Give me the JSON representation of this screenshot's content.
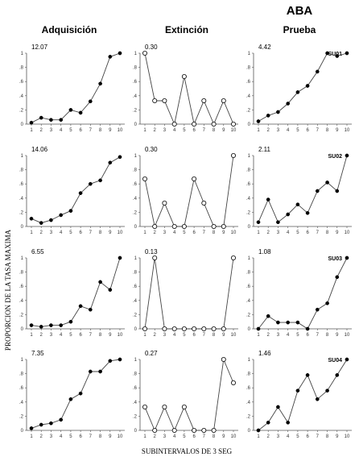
{
  "figure": {
    "group": "ABA",
    "columns": [
      "Adquisición",
      "Extinción",
      "Prueba"
    ],
    "ylabel": "PROPORCION DE LA TASA MAXIMA",
    "xlabel": "SUBINTERVALOS DE 3 SEG"
  },
  "chart_data": [
    {
      "type": "line",
      "row": 0,
      "col": 0,
      "value_label": "12.07",
      "subject": "",
      "marker": "filled",
      "x": [
        1,
        2,
        3,
        4,
        5,
        6,
        7,
        8,
        9,
        10
      ],
      "values": [
        0.02,
        0.09,
        0.06,
        0.06,
        0.2,
        0.16,
        0.32,
        0.57,
        0.95,
        1.0
      ],
      "ylim": [
        0,
        1
      ],
      "yticks": [
        0,
        0.2,
        0.4,
        0.6,
        0.8,
        1
      ],
      "yticklabels": [
        "0",
        ".2",
        ".4",
        ".6",
        ".8",
        "1"
      ]
    },
    {
      "type": "line",
      "row": 0,
      "col": 1,
      "value_label": "0.30",
      "subject": "",
      "marker": "open",
      "x": [
        1,
        2,
        3,
        4,
        5,
        6,
        7,
        8,
        9,
        10
      ],
      "values": [
        1.0,
        0.33,
        0.33,
        0.0,
        0.67,
        0.0,
        0.33,
        0.0,
        0.33,
        0.0
      ],
      "ylim": [
        0,
        1
      ],
      "yticks": [
        0,
        0.2,
        0.4,
        0.6,
        0.8,
        1
      ],
      "yticklabels": [
        "0",
        ".2",
        ".4",
        ".6",
        ".8",
        "1"
      ]
    },
    {
      "type": "line",
      "row": 0,
      "col": 2,
      "value_label": "4.42",
      "subject": "SU01",
      "marker": "filled",
      "x": [
        1,
        2,
        3,
        4,
        5,
        6,
        7,
        8,
        9,
        10
      ],
      "values": [
        0.04,
        0.12,
        0.17,
        0.29,
        0.45,
        0.54,
        0.74,
        1.0,
        0.96,
        1.0
      ],
      "ylim": [
        0,
        1
      ],
      "yticks": [
        0,
        0.2,
        0.4,
        0.6,
        0.8,
        1
      ],
      "yticklabels": [
        "0",
        ".2",
        ".4",
        ".6",
        ".8",
        "1"
      ]
    },
    {
      "type": "line",
      "row": 1,
      "col": 0,
      "value_label": "14.06",
      "subject": "",
      "marker": "filled",
      "x": [
        1,
        2,
        3,
        4,
        5,
        6,
        7,
        8,
        9,
        10
      ],
      "values": [
        0.11,
        0.05,
        0.09,
        0.16,
        0.22,
        0.47,
        0.6,
        0.65,
        0.9,
        0.98
      ],
      "ylim": [
        0,
        1
      ],
      "yticks": [
        0,
        0.2,
        0.4,
        0.6,
        0.8,
        1
      ],
      "yticklabels": [
        "0",
        ".2",
        ".4",
        ".6",
        ".8",
        "1"
      ]
    },
    {
      "type": "line",
      "row": 1,
      "col": 1,
      "value_label": "0.30",
      "subject": "",
      "marker": "open",
      "x": [
        1,
        2,
        3,
        4,
        5,
        6,
        7,
        8,
        9,
        10
      ],
      "values": [
        0.67,
        0.0,
        0.33,
        0.0,
        0.0,
        0.67,
        0.33,
        0.0,
        0.0,
        1.0
      ],
      "ylim": [
        0,
        1
      ],
      "yticks": [
        0,
        0.2,
        0.4,
        0.6,
        0.8,
        1
      ],
      "yticklabels": [
        "0",
        ".2",
        ".4",
        ".6",
        ".8",
        "1"
      ]
    },
    {
      "type": "line",
      "row": 1,
      "col": 2,
      "value_label": "2.11",
      "subject": "SU02",
      "marker": "filled",
      "x": [
        1,
        2,
        3,
        4,
        5,
        6,
        7,
        8,
        9,
        10
      ],
      "values": [
        0.06,
        0.38,
        0.06,
        0.17,
        0.31,
        0.19,
        0.5,
        0.62,
        0.5,
        1.0
      ],
      "ylim": [
        0,
        1
      ],
      "yticks": [
        0,
        0.2,
        0.4,
        0.6,
        0.8,
        1
      ],
      "yticklabels": [
        "0",
        ".2",
        ".4",
        ".6",
        ".8",
        "1"
      ]
    },
    {
      "type": "line",
      "row": 2,
      "col": 0,
      "value_label": "6.55",
      "subject": "",
      "marker": "filled",
      "x": [
        1,
        2,
        3,
        4,
        5,
        6,
        7,
        8,
        9,
        10
      ],
      "values": [
        0.05,
        0.03,
        0.05,
        0.05,
        0.1,
        0.32,
        0.27,
        0.66,
        0.55,
        1.0
      ],
      "ylim": [
        0,
        1
      ],
      "yticks": [
        0,
        0.2,
        0.4,
        0.6,
        0.8,
        1
      ],
      "yticklabels": [
        "0",
        ".2",
        ".4",
        ".6",
        ".8",
        "1"
      ]
    },
    {
      "type": "line",
      "row": 2,
      "col": 1,
      "value_label": "0.13",
      "subject": "",
      "marker": "open",
      "x": [
        1,
        2,
        3,
        4,
        5,
        6,
        7,
        8,
        9,
        10
      ],
      "values": [
        0.0,
        1.0,
        0.0,
        0.0,
        0.0,
        0.0,
        0.0,
        0.0,
        0.0,
        1.0
      ],
      "ylim": [
        0,
        1
      ],
      "yticks": [
        0,
        0.2,
        0.4,
        0.6,
        0.8,
        1
      ],
      "yticklabels": [
        "0",
        ".2",
        ".4",
        ".6",
        ".8",
        "1"
      ]
    },
    {
      "type": "line",
      "row": 2,
      "col": 2,
      "value_label": "1.08",
      "subject": "SU03",
      "marker": "filled",
      "x": [
        1,
        2,
        3,
        4,
        5,
        6,
        7,
        8,
        9,
        10
      ],
      "values": [
        0.0,
        0.18,
        0.09,
        0.09,
        0.09,
        0.0,
        0.27,
        0.36,
        0.73,
        1.0
      ],
      "ylim": [
        0,
        1
      ],
      "yticks": [
        0,
        0.2,
        0.4,
        0.6,
        0.8,
        1
      ],
      "yticklabels": [
        "0",
        ".2",
        ".4",
        ".6",
        ".8",
        "1"
      ]
    },
    {
      "type": "line",
      "row": 3,
      "col": 0,
      "value_label": "7.35",
      "subject": "",
      "marker": "filled",
      "x": [
        1,
        2,
        3,
        4,
        5,
        6,
        7,
        8,
        9,
        10
      ],
      "values": [
        0.03,
        0.08,
        0.1,
        0.15,
        0.44,
        0.52,
        0.83,
        0.83,
        0.98,
        1.0
      ],
      "ylim": [
        0,
        1
      ],
      "yticks": [
        0,
        0.2,
        0.4,
        0.6,
        0.8,
        1
      ],
      "yticklabels": [
        "0",
        ".2",
        ".4",
        ".6",
        ".8",
        "1"
      ]
    },
    {
      "type": "line",
      "row": 3,
      "col": 1,
      "value_label": "0.27",
      "subject": "",
      "marker": "open",
      "x": [
        1,
        2,
        3,
        4,
        5,
        6,
        7,
        8,
        9,
        10
      ],
      "values": [
        0.33,
        0.0,
        0.33,
        0.0,
        0.33,
        0.0,
        0.0,
        0.0,
        1.0,
        0.67
      ],
      "ylim": [
        0,
        1
      ],
      "yticks": [
        0,
        0.2,
        0.4,
        0.6,
        0.8,
        1
      ],
      "yticklabels": [
        "0",
        ".2",
        ".4",
        ".6",
        ".8",
        "1"
      ]
    },
    {
      "type": "line",
      "row": 3,
      "col": 2,
      "value_label": "1.46",
      "subject": "SU04",
      "marker": "filled",
      "x": [
        1,
        2,
        3,
        4,
        5,
        6,
        7,
        8,
        9,
        10
      ],
      "values": [
        0.0,
        0.11,
        0.33,
        0.11,
        0.56,
        0.78,
        0.44,
        0.56,
        0.78,
        1.0
      ],
      "ylim": [
        0,
        1
      ],
      "yticks": [
        0,
        0.2,
        0.4,
        0.6,
        0.8,
        1
      ],
      "yticklabels": [
        "0",
        ".2",
        ".4",
        ".6",
        ".8",
        "1"
      ]
    }
  ]
}
